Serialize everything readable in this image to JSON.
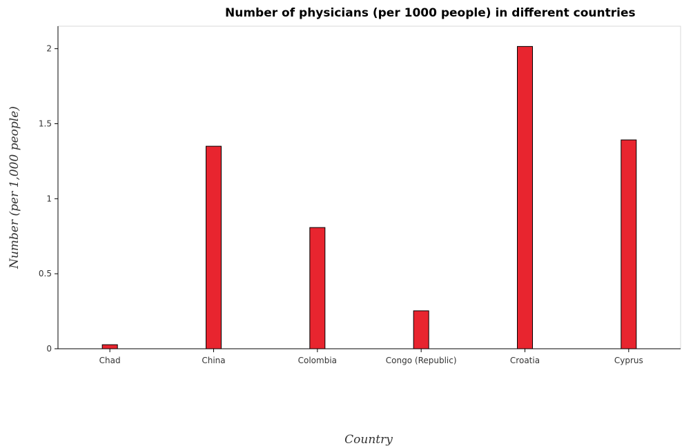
{
  "chart_data": {
    "type": "bar",
    "title": "Number of physicians (per 1000 people) in different countries",
    "xlabel": "Country",
    "ylabel": "Number (per 1,000 people)",
    "categories": [
      "Chad",
      "China",
      "Colombia",
      "Congo (Republic)",
      "Croatia",
      "Cyprus"
    ],
    "values": [
      0.027,
      1.35,
      0.808,
      0.253,
      2.015,
      1.392
    ],
    "ylim": [
      0,
      2.15
    ],
    "yticks": [
      0,
      0.5,
      1,
      1.5,
      2
    ],
    "ytick_labels": [
      "0",
      "0.5",
      "1",
      "1.5",
      "2"
    ],
    "grid": false,
    "bar_color": "#e8252f",
    "bar_outline_color": "#000000"
  }
}
